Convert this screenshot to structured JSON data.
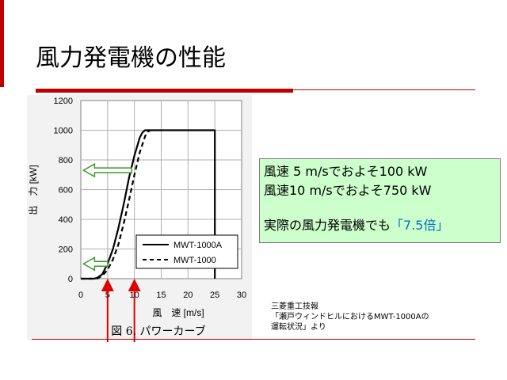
{
  "slide": {
    "title": "風力発電機の性能",
    "note": {
      "line1": "風速 5 m/sでおよそ100 kW",
      "line2": "風速10 m/sでおよそ750 kW",
      "line3_prefix": "実際の風力発電機でも",
      "line3_accent": "「7.5倍」"
    },
    "source": {
      "line1": "三菱重工技報",
      "line2": "「瀬戸ウィンドヒルにおけるMWT-1000Aの",
      "line3": "運転状況」より"
    }
  },
  "colors": {
    "accent_red": "#c00000",
    "note_bg": "#ccffcc",
    "note_accent": "#0070c0",
    "arrow_green": "#3a9a2a",
    "arrow_red": "#e00000"
  },
  "chart_data": {
    "type": "line",
    "caption": "図 6. パワーカーブ",
    "xlabel": "風　速 [m/s]",
    "ylabel": "出　力 [kW]",
    "xlim": [
      0,
      30
    ],
    "ylim": [
      0,
      1200
    ],
    "xticks": [
      0,
      5,
      10,
      15,
      20,
      25,
      30
    ],
    "yticks": [
      0,
      200,
      400,
      600,
      800,
      1000,
      1200
    ],
    "grid": true,
    "legend": "bottom-right",
    "series": [
      {
        "name": "MWT-1000A",
        "style": "solid",
        "x": [
          0,
          2.5,
          3,
          4,
          5,
          6,
          7,
          8,
          9,
          10,
          11,
          11.5,
          12,
          12.5,
          25,
          25
        ],
        "y": [
          0,
          0,
          5,
          30,
          100,
          200,
          340,
          500,
          680,
          830,
          950,
          985,
          1000,
          1000,
          1000,
          0
        ]
      },
      {
        "name": "MWT-1000",
        "style": "dashed",
        "x": [
          0,
          3,
          4,
          5,
          6,
          7,
          8,
          9,
          10,
          11,
          12,
          12.5,
          13
        ],
        "y": [
          0,
          0,
          20,
          60,
          130,
          230,
          370,
          530,
          700,
          850,
          960,
          990,
          1000
        ]
      }
    ],
    "annotations": [
      {
        "kind": "horizontal-arrow",
        "color": "green",
        "y": 730,
        "x_from": 9.5,
        "x_to": 0.5
      },
      {
        "kind": "horizontal-arrow",
        "color": "green",
        "y": 100,
        "x_from": 5,
        "x_to": 0.5
      },
      {
        "kind": "vertical-arrow",
        "color": "red",
        "x": 5,
        "y_to": 0
      },
      {
        "kind": "vertical-arrow",
        "color": "red",
        "x": 10,
        "y_to": 0
      }
    ]
  }
}
